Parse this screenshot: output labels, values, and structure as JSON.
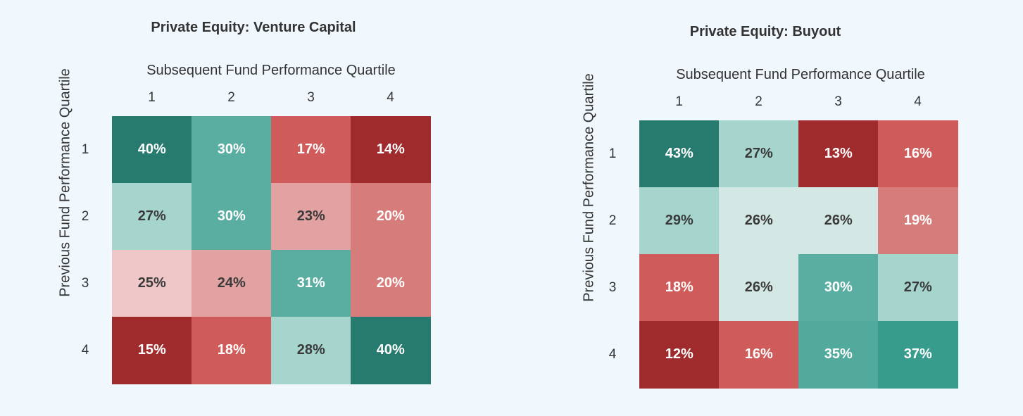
{
  "chart_data": [
    {
      "type": "heatmap",
      "title": "Private Equity: Venture Capital",
      "xlabel": "Subsequent Fund Performance Quartile",
      "ylabel": "Previous Fund Performance Quartile",
      "x_categories": [
        "1",
        "2",
        "3",
        "4"
      ],
      "y_categories": [
        "1",
        "2",
        "3",
        "4"
      ],
      "values": [
        [
          40,
          30,
          17,
          14
        ],
        [
          27,
          30,
          23,
          20
        ],
        [
          25,
          24,
          31,
          20
        ],
        [
          15,
          18,
          28,
          40
        ]
      ],
      "labels": [
        [
          "40%",
          "30%",
          "17%",
          "14%"
        ],
        [
          "27%",
          "30%",
          "23%",
          "20%"
        ],
        [
          "25%",
          "24%",
          "31%",
          "20%"
        ],
        [
          "15%",
          "18%",
          "28%",
          "40%"
        ]
      ],
      "cell_colors": [
        [
          "#277a6e",
          "#5aaea1",
          "#cf5c5a",
          "#9f2b2d"
        ],
        [
          "#a6d5ce",
          "#5aaea1",
          "#e3a2a2",
          "#d67d7b"
        ],
        [
          "#efc7c8",
          "#e3a2a2",
          "#5aaea1",
          "#d67d7b"
        ],
        [
          "#9f2b2d",
          "#cf5c5a",
          "#a6d5ce",
          "#277a6e"
        ]
      ],
      "text_colors": [
        [
          "#ffffff",
          "#ffffff",
          "#ffffff",
          "#ffffff"
        ],
        [
          "#3a3a3a",
          "#ffffff",
          "#3a3a3a",
          "#ffffff"
        ],
        [
          "#3a3a3a",
          "#3a3a3a",
          "#ffffff",
          "#ffffff"
        ],
        [
          "#ffffff",
          "#ffffff",
          "#3a3a3a",
          "#ffffff"
        ]
      ]
    },
    {
      "type": "heatmap",
      "title": "Private Equity: Buyout",
      "xlabel": "Subsequent Fund Performance Quartile",
      "ylabel": "Previous Fund Performance Quartile",
      "x_categories": [
        "1",
        "2",
        "3",
        "4"
      ],
      "y_categories": [
        "1",
        "2",
        "3",
        "4"
      ],
      "values": [
        [
          43,
          27,
          13,
          16
        ],
        [
          29,
          26,
          26,
          19
        ],
        [
          18,
          26,
          30,
          27
        ],
        [
          12,
          16,
          35,
          37
        ]
      ],
      "labels": [
        [
          "43%",
          "27%",
          "13%",
          "16%"
        ],
        [
          "29%",
          "26%",
          "26%",
          "19%"
        ],
        [
          "18%",
          "26%",
          "30%",
          "27%"
        ],
        [
          "12%",
          "16%",
          "35%",
          "37%"
        ]
      ],
      "cell_colors": [
        [
          "#277a6e",
          "#a6d5ce",
          "#9f2b2d",
          "#cf5c5a"
        ],
        [
          "#a6d5ce",
          "#d3e8e4",
          "#d3e8e4",
          "#d67d7b"
        ],
        [
          "#cf5c5a",
          "#d3e8e4",
          "#5aaea1",
          "#a6d5ce"
        ],
        [
          "#9f2b2d",
          "#cf5c5a",
          "#51aa9c",
          "#379c8c"
        ]
      ],
      "text_colors": [
        [
          "#ffffff",
          "#3a3a3a",
          "#ffffff",
          "#ffffff"
        ],
        [
          "#3a3a3a",
          "#3a3a3a",
          "#3a3a3a",
          "#ffffff"
        ],
        [
          "#ffffff",
          "#3a3a3a",
          "#ffffff",
          "#3a3a3a"
        ],
        [
          "#ffffff",
          "#ffffff",
          "#ffffff",
          "#ffffff"
        ]
      ]
    }
  ]
}
